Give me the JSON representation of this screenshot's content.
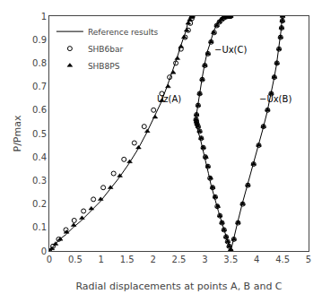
{
  "chart_data": {
    "type": "line",
    "xlabel": "Radial displacements at points A, B and C",
    "ylabel": "P/Pmax",
    "xlim": [
      0,
      5
    ],
    "ylim": [
      0,
      1
    ],
    "xticks": [
      0,
      0.5,
      1,
      1.5,
      2,
      2.5,
      3,
      3.5,
      4,
      4.5,
      5
    ],
    "yticks": [
      0,
      0.1,
      0.2,
      0.3,
      0.4,
      0.5,
      0.6,
      0.7,
      0.8,
      0.9,
      1
    ],
    "grid": false,
    "legend": "upper left",
    "annotations": [
      {
        "text": "Uz(A)",
        "x": 2.05,
        "y": 0.62
      },
      {
        "text": "−Ux(C)",
        "x": 3.15,
        "y": 0.83
      },
      {
        "text": "−Ux(B)",
        "x": 4.02,
        "y": 0.62
      }
    ],
    "series": [
      {
        "name": "Reference results",
        "type": "line",
        "line_style": "solid",
        "color": "#000000",
        "x": [
          0.0,
          0.05,
          0.12,
          0.2,
          0.32,
          0.46,
          0.62,
          0.8,
          0.98,
          1.16,
          1.34,
          1.53,
          1.7,
          1.87,
          2.02,
          2.15,
          2.27,
          2.37,
          2.46,
          2.53,
          2.59,
          2.64,
          2.67,
          2.7,
          2.72,
          2.74,
          2.75,
          2.76
        ],
        "values": [
          0.0,
          0.01,
          0.03,
          0.05,
          0.07,
          0.1,
          0.13,
          0.17,
          0.21,
          0.26,
          0.31,
          0.37,
          0.43,
          0.5,
          0.57,
          0.63,
          0.7,
          0.76,
          0.82,
          0.87,
          0.91,
          0.94,
          0.97,
          0.985,
          0.993,
          0.997,
          0.999,
          1.0
        ]
      },
      {
        "type": "line",
        "line_style": "solid",
        "color": "#000000",
        "x": [
          3.5,
          3.47,
          3.44,
          3.41,
          3.38,
          3.34,
          3.3,
          3.26,
          3.22,
          3.17,
          3.12,
          3.07,
          3.03,
          2.98,
          2.94,
          2.91,
          2.88,
          2.86,
          2.84,
          2.83,
          2.82,
          2.83,
          2.85,
          2.88,
          2.91,
          2.95,
          3.0,
          3.05,
          3.11,
          3.16,
          3.22,
          3.27,
          3.32,
          3.36,
          3.39,
          3.42,
          3.44,
          3.46,
          3.48,
          3.49,
          3.5
        ],
        "values": [
          0.0,
          0.02,
          0.04,
          0.06,
          0.08,
          0.11,
          0.14,
          0.17,
          0.2,
          0.24,
          0.28,
          0.33,
          0.37,
          0.41,
          0.45,
          0.48,
          0.5,
          0.52,
          0.53,
          0.54,
          0.55,
          0.57,
          0.6,
          0.64,
          0.69,
          0.74,
          0.8,
          0.85,
          0.89,
          0.93,
          0.96,
          0.975,
          0.985,
          0.992,
          0.996,
          0.998,
          0.999,
          0.9995,
          0.9999,
          1.0,
          1.0
        ]
      },
      {
        "type": "line",
        "line_style": "solid",
        "color": "#000000",
        "x": [
          3.5,
          3.55,
          3.63,
          3.72,
          3.82,
          3.93,
          4.03,
          4.12,
          4.2,
          4.27,
          4.33,
          4.38,
          4.42,
          4.45,
          4.47,
          4.48,
          4.49,
          4.5
        ],
        "values": [
          0.0,
          0.05,
          0.12,
          0.2,
          0.28,
          0.36,
          0.44,
          0.52,
          0.59,
          0.66,
          0.73,
          0.79,
          0.85,
          0.9,
          0.94,
          0.97,
          0.99,
          1.0
        ]
      },
      {
        "name": "SHB6bar",
        "type": "scatter",
        "marker": "circle-open",
        "color": "#000000",
        "x": [
          0.0,
          0.07,
          0.18,
          0.32,
          0.48,
          0.66,
          0.85,
          1.04,
          1.24,
          1.44,
          1.64,
          1.83,
          2.01,
          2.17,
          2.32,
          2.44,
          2.54,
          2.62,
          2.68,
          2.72,
          2.75,
          2.76
        ],
        "values": [
          0.0,
          0.02,
          0.05,
          0.09,
          0.13,
          0.17,
          0.22,
          0.27,
          0.33,
          0.39,
          0.46,
          0.53,
          0.6,
          0.67,
          0.74,
          0.8,
          0.86,
          0.91,
          0.94,
          0.97,
          0.99,
          1.0
        ]
      },
      {
        "type": "scatter",
        "marker": "circle-open",
        "color": "#000000",
        "x": [
          3.5,
          3.47,
          3.44,
          3.41,
          3.37,
          3.33,
          3.29,
          3.24,
          3.2,
          3.15,
          3.1,
          3.06,
          3.01,
          2.97,
          2.93,
          2.9,
          2.87,
          2.85,
          2.84,
          2.83,
          2.84,
          2.87,
          2.9,
          2.95,
          3.0,
          3.06,
          3.12,
          3.18,
          3.23,
          3.28,
          3.33,
          3.37,
          3.4,
          3.43,
          3.46,
          3.48,
          3.49,
          3.5
        ],
        "values": [
          0.0,
          0.02,
          0.04,
          0.06,
          0.09,
          0.12,
          0.15,
          0.19,
          0.23,
          0.27,
          0.31,
          0.36,
          0.4,
          0.44,
          0.48,
          0.51,
          0.53,
          0.54,
          0.55,
          0.56,
          0.58,
          0.62,
          0.67,
          0.73,
          0.79,
          0.84,
          0.89,
          0.93,
          0.96,
          0.975,
          0.986,
          0.993,
          0.997,
          0.999,
          1.0,
          1.0,
          1.0,
          1.0
        ]
      },
      {
        "type": "scatter",
        "marker": "circle-open",
        "color": "#000000",
        "x": [
          3.5,
          3.56,
          3.64,
          3.73,
          3.83,
          3.94,
          4.04,
          4.13,
          4.21,
          4.28,
          4.34,
          4.39,
          4.43,
          4.46,
          4.48,
          4.495,
          4.5
        ],
        "values": [
          0.0,
          0.05,
          0.12,
          0.2,
          0.28,
          0.37,
          0.45,
          0.53,
          0.6,
          0.67,
          0.74,
          0.8,
          0.86,
          0.91,
          0.95,
          0.98,
          1.0
        ]
      },
      {
        "name": "SHB8PS",
        "type": "scatter",
        "marker": "triangle-up",
        "color": "#000000",
        "x": [
          0.0,
          0.05,
          0.12,
          0.21,
          0.33,
          0.47,
          0.63,
          0.81,
          0.99,
          1.18,
          1.36,
          1.55,
          1.72,
          1.89,
          2.04,
          2.17,
          2.29,
          2.39,
          2.47,
          2.54,
          2.6,
          2.65,
          2.68,
          2.71,
          2.74,
          2.75,
          2.76
        ],
        "values": [
          0.0,
          0.01,
          0.03,
          0.05,
          0.08,
          0.11,
          0.14,
          0.18,
          0.22,
          0.27,
          0.32,
          0.38,
          0.44,
          0.51,
          0.57,
          0.64,
          0.7,
          0.76,
          0.82,
          0.87,
          0.91,
          0.94,
          0.97,
          0.985,
          0.996,
          0.999,
          1.0
        ]
      },
      {
        "type": "scatter",
        "marker": "triangle-up",
        "color": "#000000",
        "x": [
          3.5,
          3.47,
          3.44,
          3.41,
          3.37,
          3.33,
          3.29,
          3.25,
          3.2,
          3.15,
          3.11,
          3.06,
          3.02,
          2.97,
          2.93,
          2.9,
          2.87,
          2.85,
          2.84,
          2.83,
          2.84,
          2.87,
          2.9,
          2.95,
          3.0,
          3.06,
          3.12,
          3.17,
          3.23,
          3.28,
          3.32,
          3.36,
          3.4,
          3.43,
          3.45,
          3.47,
          3.48,
          3.5
        ],
        "values": [
          0.0,
          0.02,
          0.04,
          0.06,
          0.09,
          0.12,
          0.15,
          0.19,
          0.23,
          0.27,
          0.31,
          0.36,
          0.4,
          0.44,
          0.48,
          0.51,
          0.53,
          0.54,
          0.55,
          0.56,
          0.58,
          0.62,
          0.67,
          0.73,
          0.79,
          0.84,
          0.89,
          0.93,
          0.96,
          0.975,
          0.986,
          0.993,
          0.997,
          0.999,
          1.0,
          1.0,
          1.0,
          1.0
        ]
      },
      {
        "type": "scatter",
        "marker": "triangle-up",
        "color": "#000000",
        "x": [
          3.5,
          3.56,
          3.64,
          3.73,
          3.83,
          3.94,
          4.04,
          4.13,
          4.21,
          4.28,
          4.34,
          4.39,
          4.43,
          4.46,
          4.48,
          4.495,
          4.5
        ],
        "values": [
          0.0,
          0.05,
          0.12,
          0.2,
          0.28,
          0.37,
          0.45,
          0.53,
          0.6,
          0.67,
          0.74,
          0.8,
          0.86,
          0.91,
          0.95,
          0.98,
          1.0
        ]
      }
    ]
  }
}
